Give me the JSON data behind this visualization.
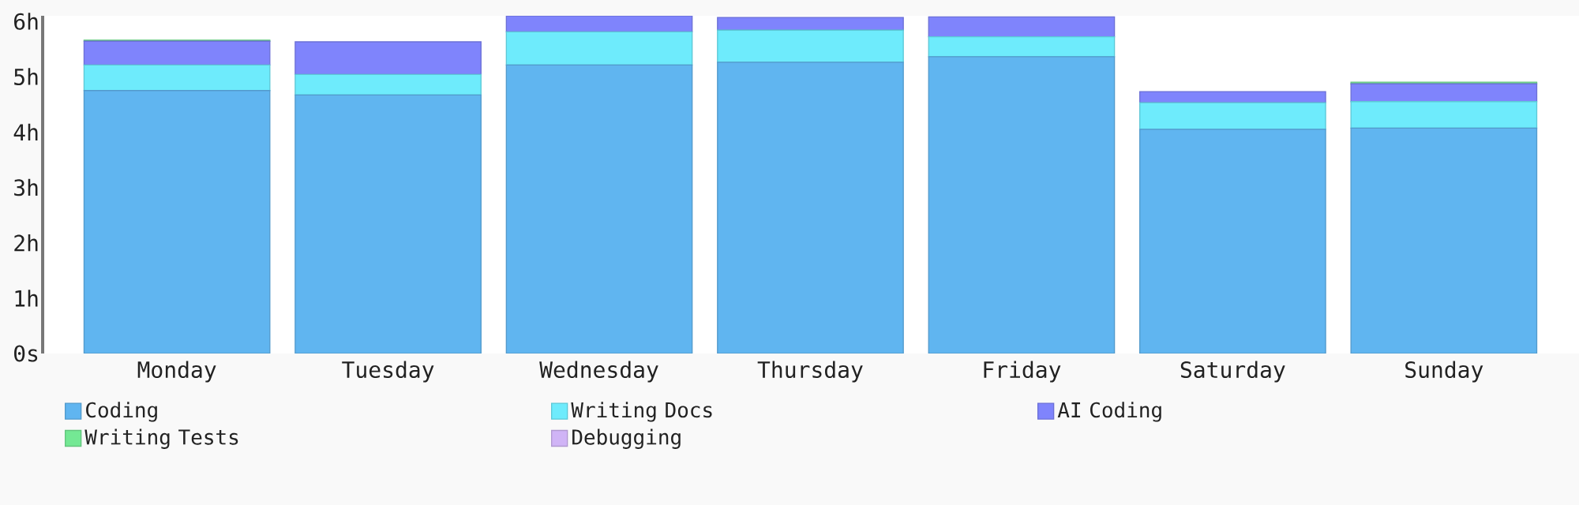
{
  "chart_data": {
    "type": "bar",
    "stacked": true,
    "categories": [
      "Monday",
      "Tuesday",
      "Wednesday",
      "Thursday",
      "Friday",
      "Saturday",
      "Sunday"
    ],
    "series": [
      {
        "name": "Coding",
        "color": "#60b5f0",
        "values": [
          4.75,
          4.67,
          5.21,
          5.26,
          5.36,
          4.05,
          4.07
        ]
      },
      {
        "name": "Writing Docs",
        "color": "#6eebfc",
        "values": [
          0.46,
          0.37,
          0.6,
          0.58,
          0.36,
          0.48,
          0.48
        ]
      },
      {
        "name": "AI Coding",
        "color": "#7f84fc",
        "values": [
          0.43,
          0.59,
          0.29,
          0.23,
          0.36,
          0.2,
          0.32
        ]
      },
      {
        "name": "Writing Tests",
        "color": "#74e894",
        "values": [
          0.02,
          0,
          null,
          null,
          0,
          0,
          0.03
        ]
      },
      {
        "name": "Debugging",
        "color": "#d0b4f6",
        "values": [
          0,
          0,
          0,
          0,
          0,
          0,
          0
        ]
      }
    ],
    "ylim": [
      0,
      6.1
    ],
    "yticks": [
      {
        "value": 0,
        "label": "0s"
      },
      {
        "value": 1,
        "label": "1h"
      },
      {
        "value": 2,
        "label": "2h"
      },
      {
        "value": 3,
        "label": "3h"
      },
      {
        "value": 4,
        "label": "4h"
      },
      {
        "value": 5,
        "label": "5h"
      },
      {
        "value": 6,
        "label": "6h"
      }
    ],
    "legend": "bottom"
  }
}
